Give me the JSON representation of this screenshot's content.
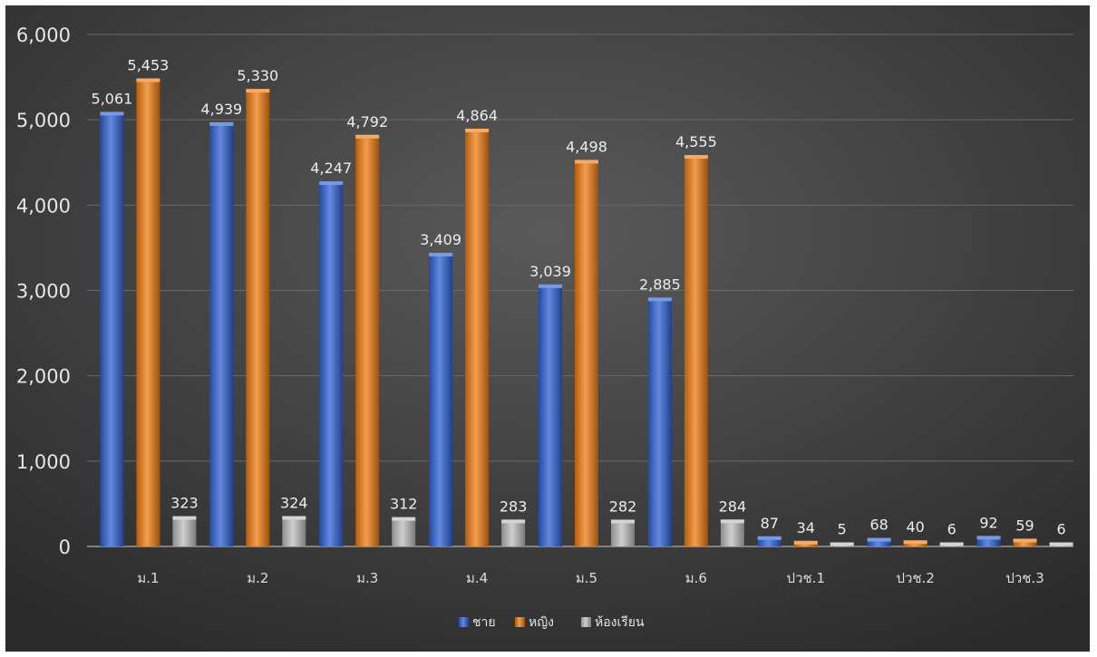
{
  "chart_data": {
    "type": "bar",
    "categories": [
      "ม.1",
      "ม.2",
      "ม.3",
      "ม.4",
      "ม.5",
      "ม.6",
      "ปวช.1",
      "ปวช.2",
      "ปวช.3"
    ],
    "series": [
      {
        "name": "ชาย",
        "color": "#2f63d6",
        "values": [
          5061,
          4939,
          4247,
          3409,
          3039,
          2885,
          87,
          68,
          92
        ]
      },
      {
        "name": "หญิง",
        "color": "#f07c12",
        "values": [
          5453,
          5330,
          4792,
          4864,
          4498,
          4555,
          34,
          40,
          59
        ]
      },
      {
        "name": "ห้องเรียน",
        "color": "#bdbdbd",
        "values": [
          323,
          324,
          312,
          283,
          282,
          284,
          5,
          6,
          6
        ]
      }
    ],
    "data_labels": [
      [
        "5,061",
        "4,939",
        "4,247",
        "3,409",
        "3,039",
        "2,885",
        "87",
        "68",
        "92"
      ],
      [
        "5,453",
        "5,330",
        "4,792",
        "4,864",
        "4,498",
        "4,555",
        "34",
        "40",
        "59"
      ],
      [
        "323",
        "324",
        "312",
        "283",
        "282",
        "284",
        "5",
        "6",
        "6"
      ]
    ],
    "y_ticks": [
      "0",
      "1,000",
      "2,000",
      "3,000",
      "4,000",
      "5,000",
      "6,000"
    ],
    "ylim": [
      0,
      6000
    ],
    "grid": true,
    "legend_position": "bottom",
    "title": "",
    "xlabel": "",
    "ylabel": ""
  }
}
